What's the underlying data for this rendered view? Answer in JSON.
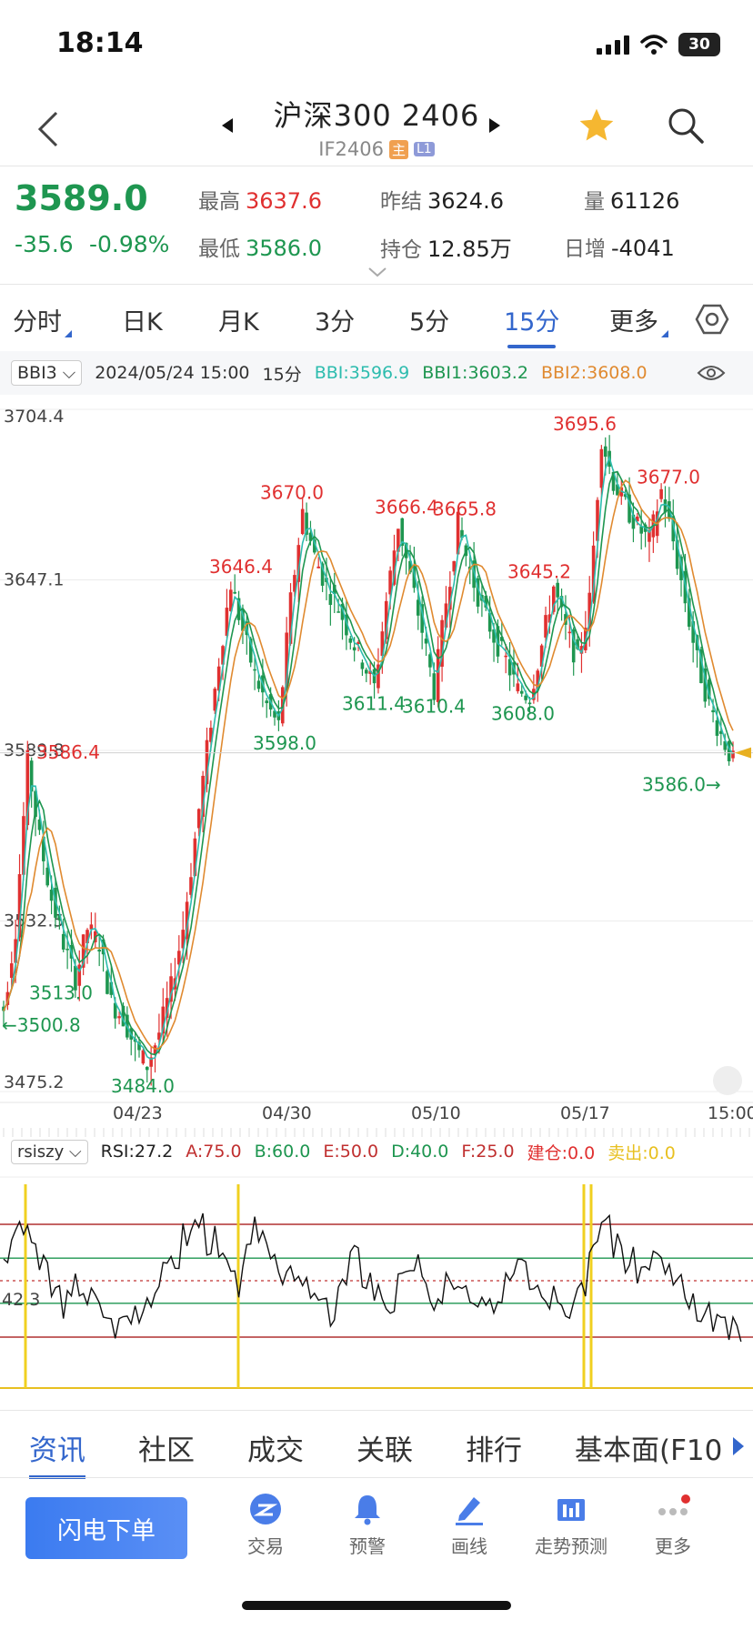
{
  "status_bar": {
    "time": "18:14",
    "battery": "30"
  },
  "header": {
    "title": "沪深300 2406",
    "contract": "IF2406",
    "badge_main": "主",
    "badge_level": "L1"
  },
  "quote": {
    "price": "3589.0",
    "change": "-35.6",
    "change_pct": "-0.98%",
    "high_label": "最高",
    "high": "3637.6",
    "low_label": "最低",
    "low": "3586.0",
    "prev_settle_label": "昨结",
    "prev_settle": "3624.6",
    "open_interest_label": "持仓",
    "open_interest": "12.85万",
    "volume_label": "量",
    "volume": "61126",
    "daily_add_label": "日增",
    "daily_add": "-4041"
  },
  "period_tabs": [
    "分时",
    "日K",
    "月K",
    "3分",
    "5分",
    "15分",
    "更多"
  ],
  "active_period": "15分",
  "indicator_bar": {
    "selector": "BBI3",
    "datetime": "2024/05/24 15:00",
    "period": "15分",
    "bbi": "BBI:3596.9",
    "bbi1": "BBI1:3603.2",
    "bbi2": "BBI2:3608.0"
  },
  "chart_data": {
    "type": "candlestick",
    "y_axis_ticks": [
      "3704.4",
      "3647.1",
      "3589.8",
      "3532.5",
      "3475.2"
    ],
    "ylim": [
      3475.2,
      3704.4
    ],
    "x_axis_ticks": [
      "04/23",
      "04/30",
      "05/10",
      "05/17",
      "15:00"
    ],
    "series_names": [
      "BBI",
      "BBI1",
      "BBI2"
    ],
    "annotations": {
      "peak_1": "3586.4",
      "low_1": "3513.0",
      "left_arrow": "←3500.8",
      "low_2": "3484.0",
      "peak_2": "3646.4",
      "trough_2": "3598.0",
      "peak_3": "3670.0",
      "peak_4a": "3666.4",
      "peak_4b": "3665.8",
      "trough_4a": "3611.4",
      "trough_4b": "3610.4",
      "peak_5": "3645.2",
      "trough_5": "3608.0",
      "peak_6": "3695.6",
      "peak_7": "3677.0",
      "current_low": "3586.0→"
    },
    "price_path": [
      3503,
      3530,
      3586,
      3560,
      3540,
      3525,
      3513,
      3530,
      3525,
      3505,
      3500,
      3490,
      3484,
      3495,
      3510,
      3530,
      3560,
      3590,
      3620,
      3646,
      3630,
      3615,
      3605,
      3598,
      3640,
      3670,
      3655,
      3645,
      3638,
      3628,
      3620,
      3611,
      3640,
      3666,
      3648,
      3630,
      3610,
      3640,
      3666,
      3650,
      3638,
      3628,
      3620,
      3610,
      3608,
      3625,
      3645,
      3630,
      3620,
      3640,
      3695,
      3680,
      3672,
      3665,
      3660,
      3677,
      3660,
      3640,
      3620,
      3605,
      3595,
      3586
    ]
  },
  "rsi_bar": {
    "selector": "rsiszy",
    "rsi": "RSI:27.2",
    "a": "A:75.0",
    "b": "B:60.0",
    "e": "E:50.0",
    "d": "D:40.0",
    "f": "F:25.0",
    "build": "建仓:0.0",
    "sell": "卖出:0.0",
    "side_label": "42.3",
    "rsi_path": [
      62,
      74,
      68,
      55,
      45,
      40,
      48,
      42,
      36,
      30,
      34,
      38,
      45,
      52,
      60,
      70,
      76,
      68,
      58,
      48,
      60,
      72,
      66,
      55,
      50,
      46,
      40,
      36,
      48,
      60,
      52,
      45,
      40,
      48,
      58,
      46,
      40,
      50,
      44,
      38,
      36,
      42,
      56,
      64,
      52,
      44,
      46,
      40,
      50,
      62,
      78,
      66,
      58,
      55,
      60,
      56,
      48,
      40,
      30,
      34,
      28,
      27
    ]
  },
  "info_tabs": [
    "资讯",
    "社区",
    "成交",
    "关联",
    "排行",
    "基本面(F10"
  ],
  "active_info_tab": "资讯",
  "action_bar": {
    "flash_order": "闪电下单",
    "items": [
      "交易",
      "预警",
      "画线",
      "走势预测",
      "更多"
    ]
  },
  "colors": {
    "up": "#e03030",
    "down": "#1e9650",
    "accent": "#3366cc",
    "bbi": "#2dbcae",
    "bbi1": "#1e9650",
    "bbi2": "#e08a30"
  }
}
